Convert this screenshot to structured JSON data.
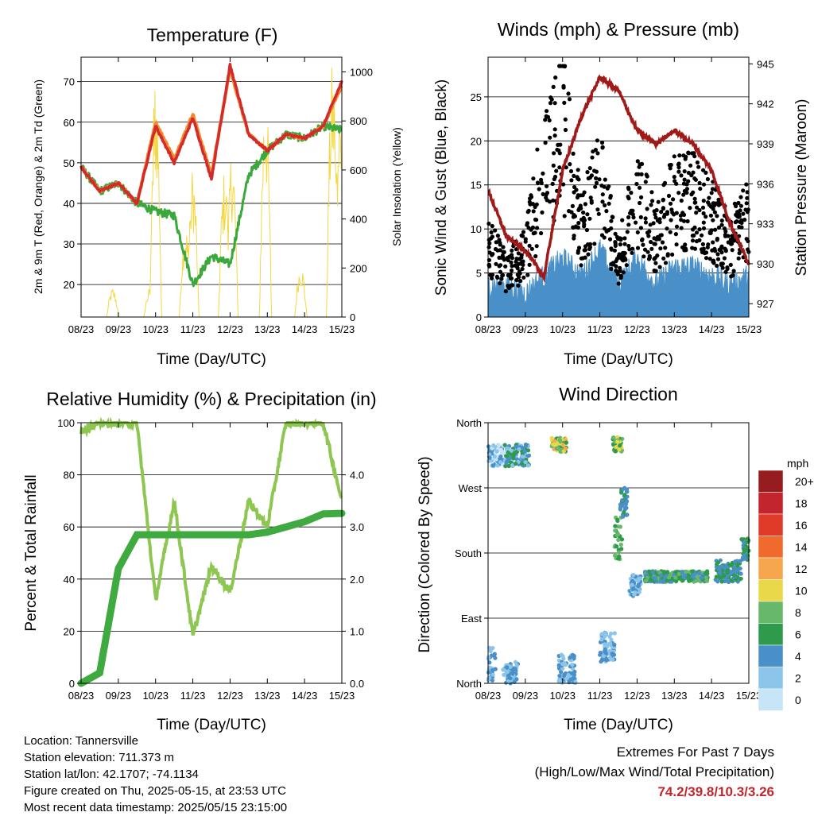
{
  "temperature": {
    "title": "Temperature (F)",
    "ylabel_left": "2m & 9m T (Red, Orange) & 2m Td (Green)",
    "ylabel_right": "Solar Insolation (Yellow)",
    "xlabel": "Time (Day/UTC)",
    "yticks_left": [
      20,
      30,
      40,
      50,
      60,
      70
    ],
    "yticks_right": [
      0,
      200,
      400,
      600,
      800,
      1000
    ]
  },
  "winds": {
    "title": "Winds (mph) & Pressure (mb)",
    "ylabel_left": "Sonic Wind & Gust (Blue, Black)",
    "ylabel_right": "Station Pressure (Maroon)",
    "xlabel": "Time (Day/UTC)",
    "yticks_left": [
      0,
      5,
      10,
      15,
      20,
      25
    ],
    "yticks_right": [
      927,
      930,
      933,
      936,
      939,
      942,
      945
    ]
  },
  "humidity": {
    "title": "Relative Humidity (%) & Precipitation (in)",
    "ylabel_left": "Percent & Total Rainfall",
    "xlabel": "Time (Day/UTC)",
    "yticks_left": [
      0,
      20,
      40,
      60,
      80,
      100
    ],
    "yticks_right": [
      "0.0",
      "1.0",
      "2.0",
      "3.0",
      "4.0"
    ]
  },
  "direction": {
    "title": "Wind Direction",
    "ylabel_left": "Direction (Colored By Speed)",
    "xlabel": "Time (Day/UTC)",
    "yticks": [
      "North",
      "East",
      "South",
      "West",
      "North"
    ],
    "legend_title": "mph",
    "legend_labels": [
      "0",
      "2",
      "4",
      "6",
      "8",
      "10",
      "12",
      "14",
      "16",
      "18",
      "20+"
    ],
    "legend_colors": [
      "#c6e6f7",
      "#8cc5ea",
      "#4a90c8",
      "#2e9a4c",
      "#67b86a",
      "#e8d84a",
      "#f6a74b",
      "#ef6a2c",
      "#e03a28",
      "#c3252c",
      "#961c1f"
    ]
  },
  "x_ticks": [
    "08/23",
    "09/23",
    "10/23",
    "11/23",
    "12/23",
    "13/23",
    "14/23",
    "15/23"
  ],
  "info": {
    "location": "Location: Tannersville",
    "elevation": "Station elevation: 711.373 m",
    "latlon": "Station lat/lon: 42.1707; -74.1134",
    "created": "Figure created on Thu, 2025-05-15, at 23:53 UTC",
    "recent": "Most recent data timestamp: 2025/05/15 23:15:00"
  },
  "extremes": {
    "title": "Extremes For Past 7 Days",
    "subtitle": "(High/Low/Max Wind/Total Precipitation)",
    "values": "74.2/39.8/10.3/3.26"
  },
  "chart_data": [
    {
      "type": "line",
      "title": "Temperature (F)",
      "xlabel": "Time (Day/UTC)",
      "x": [
        0,
        0.5,
        1,
        1.5,
        2,
        2.5,
        3,
        3.5,
        4,
        4.5,
        5,
        5.5,
        6,
        6.5,
        7
      ],
      "series": [
        {
          "name": "2m T (Red)",
          "color": "#d42a2a",
          "values": [
            49,
            43,
            45,
            40,
            59,
            50,
            61,
            46,
            74,
            57,
            53,
            57,
            56,
            59,
            70
          ]
        },
        {
          "name": "9m T (Orange)",
          "color": "#f28a30",
          "values": [
            49,
            43,
            45,
            40,
            60,
            51,
            62,
            47,
            73,
            57,
            53,
            57,
            56,
            59,
            69
          ]
        },
        {
          "name": "2m Td (Green)",
          "color": "#3aa83a",
          "values": [
            49,
            43,
            45,
            40,
            38,
            37,
            20,
            27,
            25,
            47,
            53,
            57,
            56,
            59,
            58
          ]
        },
        {
          "name": "Solar Insolation (Yellow)",
          "color": "#f5d742",
          "values": [
            0,
            0,
            120,
            0,
            1000,
            300,
            600,
            0,
            600,
            700,
            0,
            200,
            0,
            1000,
            0
          ]
        }
      ],
      "ylim": [
        12,
        76
      ],
      "ylim_right": [
        0,
        1060
      ]
    },
    {
      "type": "scatter",
      "title": "Winds (mph) & Pressure (mb)",
      "xlabel": "Time (Day/UTC)",
      "x": [
        0,
        0.5,
        1,
        1.5,
        2,
        2.5,
        3,
        3.5,
        4,
        4.5,
        5,
        5.5,
        6,
        6.5,
        7
      ],
      "series": [
        {
          "name": "Sonic Wind (Blue)",
          "color": "#4a90c8",
          "values": [
            3,
            3,
            2,
            4,
            6,
            4,
            7,
            3,
            6,
            3,
            5,
            5,
            4,
            3,
            4
          ]
        },
        {
          "name": "Gust (Black)",
          "color": "#000000",
          "values": [
            8,
            5,
            7,
            17,
            22,
            10,
            15,
            6,
            14,
            9,
            13,
            13,
            11,
            8,
            12
          ]
        },
        {
          "name": "Station Pressure (Maroon)",
          "color": "#a01a1a",
          "values": [
            935.5,
            932,
            931,
            929,
            937,
            941,
            944,
            943,
            940,
            939,
            940,
            939,
            937,
            933,
            930
          ]
        }
      ],
      "ylim": [
        0,
        29.5
      ],
      "ylim_right": [
        926,
        945.5
      ]
    },
    {
      "type": "line",
      "title": "Relative Humidity (%) & Precipitation (in)",
      "xlabel": "Time (Day/UTC)",
      "x": [
        0,
        0.5,
        1,
        1.5,
        2,
        2.5,
        3,
        3.5,
        4,
        4.5,
        5,
        5.5,
        6,
        6.5,
        7
      ],
      "series": [
        {
          "name": "Relative Humidity",
          "color": "#8dc651",
          "values": [
            97,
            100,
            100,
            100,
            32,
            70,
            18,
            45,
            35,
            70,
            60,
            100,
            100,
            100,
            70
          ]
        },
        {
          "name": "Total Rainfall",
          "color": "#3faa3f",
          "values": [
            0,
            0.2,
            2.2,
            2.85,
            2.85,
            2.85,
            2.85,
            2.85,
            2.85,
            2.85,
            2.9,
            3.0,
            3.1,
            3.25,
            3.26
          ]
        }
      ],
      "ylim": [
        0,
        100
      ],
      "ylim_right": [
        0,
        5
      ]
    },
    {
      "type": "scatter",
      "title": "Wind Direction",
      "xlabel": "Time (Day/UTC)",
      "x": [
        0,
        0.5,
        1,
        1.5,
        2,
        2.5,
        3,
        3.5,
        4,
        4.5,
        5,
        5.5,
        6,
        6.5,
        7
      ],
      "series": [
        {
          "name": "Direction (degrees)",
          "values": [
            320,
            300,
            310,
            315,
            20,
            320,
            330,
            60,
            190,
            90,
            120,
            120,
            120,
            110,
            150
          ]
        }
      ],
      "ylim": [
        0,
        360
      ],
      "colorscale": [
        0,
        2,
        4,
        6,
        8,
        10,
        12,
        14,
        16,
        18,
        20
      ]
    }
  ]
}
